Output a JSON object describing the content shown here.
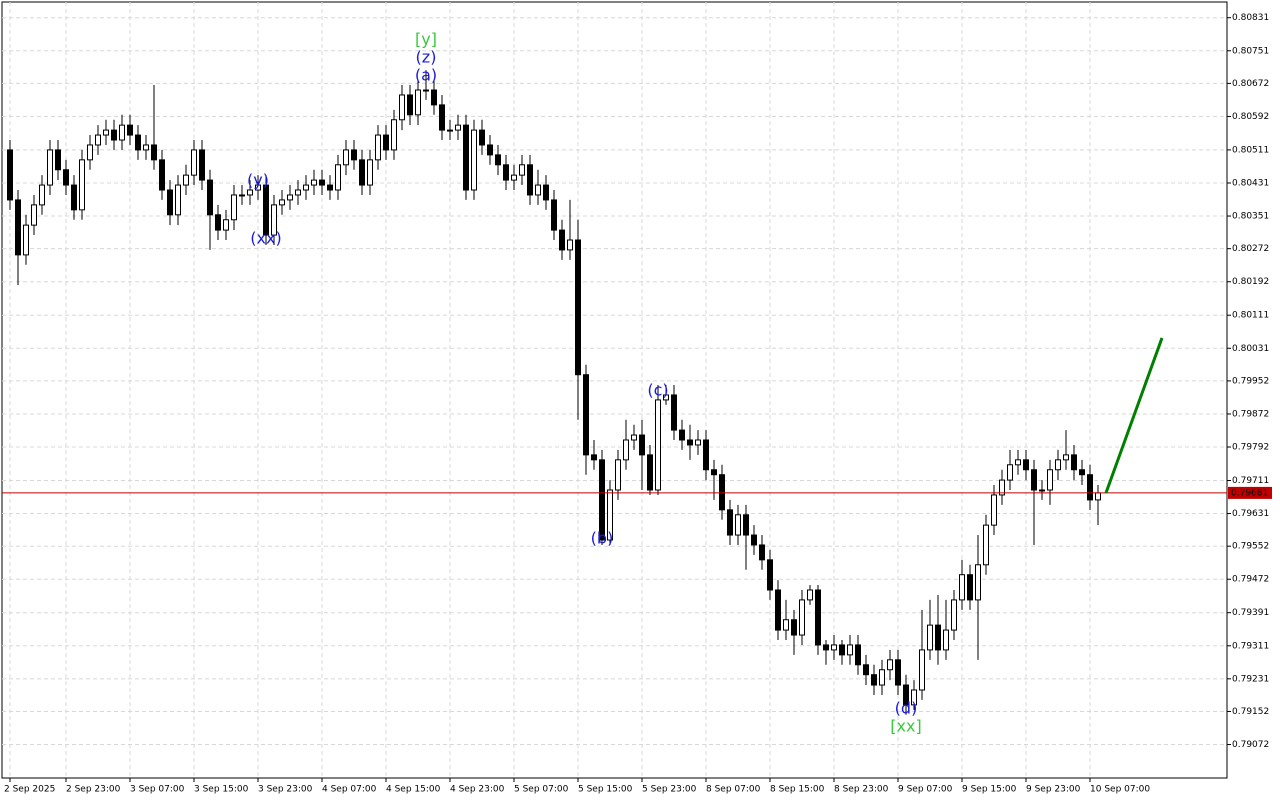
{
  "chart_data": {
    "type": "candlestick",
    "ylim": [
      0.78991,
      0.80869
    ],
    "yticks": [
      0.80831,
      0.80751,
      0.80672,
      0.80592,
      0.80511,
      0.80431,
      0.80351,
      0.80272,
      0.80192,
      0.80111,
      0.80031,
      0.79952,
      0.79872,
      0.79792,
      0.79711,
      0.79631,
      0.79552,
      0.79472,
      0.79391,
      0.79311,
      0.79231,
      0.79152,
      0.79072
    ],
    "xlim": [
      -1,
      152.125
    ],
    "xticks": [
      {
        "value": 0,
        "label": "2 Sep 2025"
      },
      {
        "value": 7,
        "label": "2 Sep 23:00"
      },
      {
        "value": 15,
        "label": "3 Sep 07:00"
      },
      {
        "value": 23,
        "label": "3 Sep 15:00"
      },
      {
        "value": 31,
        "label": "3 Sep 23:00"
      },
      {
        "value": 39,
        "label": "4 Sep 07:00"
      },
      {
        "value": 47,
        "label": "4 Sep 15:00"
      },
      {
        "value": 55,
        "label": "4 Sep 23:00"
      },
      {
        "value": 63,
        "label": "5 Sep 07:00"
      },
      {
        "value": 71,
        "label": "5 Sep 15:00"
      },
      {
        "value": 79,
        "label": "5 Sep 23:00"
      },
      {
        "value": 87,
        "label": "8 Sep 07:00"
      },
      {
        "value": 95,
        "label": "8 Sep 15:00"
      },
      {
        "value": 103,
        "label": "8 Sep 23:00"
      },
      {
        "value": 111,
        "label": "9 Sep 07:00"
      },
      {
        "value": 119,
        "label": "9 Sep 15:00"
      },
      {
        "value": 127,
        "label": "9 Sep 23:00"
      },
      {
        "value": 135,
        "label": "10 Sep 07:00"
      }
    ],
    "grid": true,
    "up_color": "#ffffff",
    "down_color": "#000000",
    "wick_color": "#000000",
    "ohlc": [
      [
        0.80511,
        0.80535,
        0.80366,
        0.8039
      ],
      [
        0.8039,
        0.80414,
        0.80184,
        0.80257
      ],
      [
        0.80257,
        0.80354,
        0.80233,
        0.80329
      ],
      [
        0.80329,
        0.80402,
        0.80305,
        0.80378
      ],
      [
        0.80378,
        0.8045,
        0.80354,
        0.80426
      ],
      [
        0.80426,
        0.80535,
        0.80402,
        0.80511
      ],
      [
        0.80511,
        0.80535,
        0.80438,
        0.80463
      ],
      [
        0.80463,
        0.80487,
        0.80402,
        0.80426
      ],
      [
        0.80426,
        0.8045,
        0.80342,
        0.80366
      ],
      [
        0.80366,
        0.80511,
        0.80342,
        0.80487
      ],
      [
        0.80487,
        0.80547,
        0.80463,
        0.80523
      ],
      [
        0.80523,
        0.80571,
        0.80499,
        0.80547
      ],
      [
        0.80547,
        0.80584,
        0.80523,
        0.80559
      ],
      [
        0.80559,
        0.80584,
        0.80511,
        0.80535
      ],
      [
        0.80535,
        0.80596,
        0.80511,
        0.80571
      ],
      [
        0.80571,
        0.80596,
        0.80523,
        0.80547
      ],
      [
        0.80547,
        0.80571,
        0.80487,
        0.80511
      ],
      [
        0.80511,
        0.80547,
        0.80487,
        0.80523
      ],
      [
        0.80523,
        0.80668,
        0.80463,
        0.80487
      ],
      [
        0.80487,
        0.80511,
        0.8039,
        0.80414
      ],
      [
        0.80414,
        0.80438,
        0.80329,
        0.80354
      ],
      [
        0.80354,
        0.8045,
        0.80329,
        0.80426
      ],
      [
        0.80426,
        0.80475,
        0.80402,
        0.8045
      ],
      [
        0.8045,
        0.80535,
        0.80426,
        0.80511
      ],
      [
        0.80511,
        0.80535,
        0.80414,
        0.80438
      ],
      [
        0.80438,
        0.80463,
        0.80269,
        0.80354
      ],
      [
        0.80354,
        0.80378,
        0.80293,
        0.80317
      ],
      [
        0.80317,
        0.80366,
        0.80293,
        0.80342
      ],
      [
        0.80342,
        0.80426,
        0.80317,
        0.80402
      ],
      [
        0.80402,
        0.80426,
        0.80378,
        0.80402
      ],
      [
        0.80402,
        0.80438,
        0.80378,
        0.80414
      ],
      [
        0.80414,
        0.8045,
        0.8039,
        0.80426
      ],
      [
        0.80426,
        0.8045,
        0.80281,
        0.80305
      ],
      [
        0.80305,
        0.80402,
        0.80281,
        0.80378
      ],
      [
        0.80378,
        0.80414,
        0.80354,
        0.8039
      ],
      [
        0.8039,
        0.80426,
        0.80366,
        0.80402
      ],
      [
        0.80402,
        0.80438,
        0.80378,
        0.80414
      ],
      [
        0.80414,
        0.8045,
        0.8039,
        0.80426
      ],
      [
        0.80426,
        0.80463,
        0.80402,
        0.80438
      ],
      [
        0.80438,
        0.80463,
        0.80402,
        0.80426
      ],
      [
        0.80426,
        0.8045,
        0.8039,
        0.80414
      ],
      [
        0.80414,
        0.80499,
        0.8039,
        0.80475
      ],
      [
        0.80475,
        0.80535,
        0.8045,
        0.80511
      ],
      [
        0.80511,
        0.80535,
        0.80463,
        0.80487
      ],
      [
        0.80487,
        0.80511,
        0.80402,
        0.80426
      ],
      [
        0.80426,
        0.80511,
        0.80402,
        0.80487
      ],
      [
        0.80487,
        0.80571,
        0.80463,
        0.80547
      ],
      [
        0.80547,
        0.80571,
        0.80487,
        0.80511
      ],
      [
        0.80511,
        0.80608,
        0.80487,
        0.80584
      ],
      [
        0.80584,
        0.80668,
        0.80559,
        0.80644
      ],
      [
        0.80644,
        0.80668,
        0.80571,
        0.80596
      ],
      [
        0.80596,
        0.8068,
        0.80571,
        0.80656
      ],
      [
        0.80656,
        0.80704,
        0.80632,
        0.80656
      ],
      [
        0.80656,
        0.8068,
        0.80596,
        0.8062
      ],
      [
        0.8062,
        0.80644,
        0.80535,
        0.80559
      ],
      [
        0.80559,
        0.80584,
        0.80535,
        0.80559
      ],
      [
        0.80559,
        0.80596,
        0.80535,
        0.80571
      ],
      [
        0.80571,
        0.80596,
        0.8039,
        0.80414
      ],
      [
        0.80414,
        0.80584,
        0.8039,
        0.80559
      ],
      [
        0.80559,
        0.80584,
        0.80499,
        0.80523
      ],
      [
        0.80523,
        0.80547,
        0.80475,
        0.80499
      ],
      [
        0.80499,
        0.80523,
        0.8045,
        0.80475
      ],
      [
        0.80475,
        0.80499,
        0.80414,
        0.80438
      ],
      [
        0.80438,
        0.80475,
        0.80414,
        0.8045
      ],
      [
        0.8045,
        0.80499,
        0.80426,
        0.80475
      ],
      [
        0.80475,
        0.80499,
        0.80378,
        0.80402
      ],
      [
        0.80402,
        0.80463,
        0.80378,
        0.80426
      ],
      [
        0.80426,
        0.8045,
        0.80366,
        0.8039
      ],
      [
        0.8039,
        0.80414,
        0.80293,
        0.80317
      ],
      [
        0.80317,
        0.80342,
        0.80245,
        0.80269
      ],
      [
        0.80269,
        0.8039,
        0.80245,
        0.80293
      ],
      [
        0.80293,
        0.80342,
        0.79858,
        0.79967
      ],
      [
        0.79967,
        0.79991,
        0.79725,
        0.79773
      ],
      [
        0.79773,
        0.79809,
        0.79737,
        0.79761
      ],
      [
        0.79761,
        0.79785,
        0.79555,
        0.79567
      ],
      [
        0.79567,
        0.79712,
        0.79555,
        0.79688
      ],
      [
        0.79688,
        0.79785,
        0.79664,
        0.79761
      ],
      [
        0.79761,
        0.79858,
        0.79737,
        0.79809
      ],
      [
        0.79809,
        0.79846,
        0.79785,
        0.79821
      ],
      [
        0.79821,
        0.79858,
        0.79688,
        0.79773
      ],
      [
        0.79773,
        0.79797,
        0.79676,
        0.79688
      ],
      [
        0.79688,
        0.79942,
        0.79676,
        0.79906
      ],
      [
        0.79906,
        0.79942,
        0.79894,
        0.79918
      ],
      [
        0.79918,
        0.79942,
        0.79809,
        0.79833
      ],
      [
        0.79833,
        0.79858,
        0.79785,
        0.79809
      ],
      [
        0.79809,
        0.79846,
        0.79761,
        0.79797
      ],
      [
        0.79797,
        0.79833,
        0.79773,
        0.79809
      ],
      [
        0.79809,
        0.79833,
        0.79712,
        0.79737
      ],
      [
        0.79737,
        0.79761,
        0.79664,
        0.79725
      ],
      [
        0.79725,
        0.79749,
        0.79616,
        0.7964
      ],
      [
        0.7964,
        0.79664,
        0.79555,
        0.79579
      ],
      [
        0.79579,
        0.79652,
        0.79555,
        0.79628
      ],
      [
        0.79628,
        0.79652,
        0.79495,
        0.79579
      ],
      [
        0.79579,
        0.79603,
        0.79531,
        0.79555
      ],
      [
        0.79555,
        0.79579,
        0.79495,
        0.79519
      ],
      [
        0.79519,
        0.79543,
        0.79422,
        0.79446
      ],
      [
        0.79446,
        0.7947,
        0.79325,
        0.79349
      ],
      [
        0.79349,
        0.79422,
        0.79325,
        0.79374
      ],
      [
        0.79374,
        0.79398,
        0.79289,
        0.79337
      ],
      [
        0.79337,
        0.79446,
        0.79313,
        0.79422
      ],
      [
        0.79422,
        0.79458,
        0.7941,
        0.79446
      ],
      [
        0.79446,
        0.79458,
        0.79289,
        0.79313
      ],
      [
        0.79313,
        0.79325,
        0.79265,
        0.79301
      ],
      [
        0.79301,
        0.79337,
        0.79277,
        0.79313
      ],
      [
        0.79313,
        0.79325,
        0.79265,
        0.79289
      ],
      [
        0.79289,
        0.79337,
        0.79265,
        0.79313
      ],
      [
        0.79313,
        0.79337,
        0.79241,
        0.79265
      ],
      [
        0.79265,
        0.79289,
        0.79216,
        0.79241
      ],
      [
        0.79241,
        0.79265,
        0.79192,
        0.79216
      ],
      [
        0.79216,
        0.79277,
        0.79192,
        0.79253
      ],
      [
        0.79253,
        0.79301,
        0.79228,
        0.79277
      ],
      [
        0.79277,
        0.79301,
        0.79192,
        0.79216
      ],
      [
        0.79216,
        0.79241,
        0.79144,
        0.79168
      ],
      [
        0.79168,
        0.79228,
        0.79156,
        0.79204
      ],
      [
        0.79204,
        0.79398,
        0.7918,
        0.79301
      ],
      [
        0.79301,
        0.79422,
        0.79277,
        0.79361
      ],
      [
        0.79361,
        0.79434,
        0.79265,
        0.79301
      ],
      [
        0.79301,
        0.79422,
        0.79277,
        0.79349
      ],
      [
        0.79349,
        0.79446,
        0.79325,
        0.79422
      ],
      [
        0.79422,
        0.79519,
        0.79398,
        0.79483
      ],
      [
        0.79483,
        0.79507,
        0.79398,
        0.79422
      ],
      [
        0.79422,
        0.79579,
        0.79277,
        0.79507
      ],
      [
        0.79507,
        0.79628,
        0.79483,
        0.79603
      ],
      [
        0.79603,
        0.797,
        0.79579,
        0.79676
      ],
      [
        0.79676,
        0.79737,
        0.79652,
        0.79712
      ],
      [
        0.79712,
        0.79785,
        0.79688,
        0.79749
      ],
      [
        0.79749,
        0.79785,
        0.79725,
        0.79761
      ],
      [
        0.79761,
        0.79785,
        0.79712,
        0.79737
      ],
      [
        0.79737,
        0.79761,
        0.79555,
        0.79688
      ],
      [
        0.79688,
        0.79712,
        0.79664,
        0.79688
      ],
      [
        0.79688,
        0.79761,
        0.79652,
        0.79737
      ],
      [
        0.79737,
        0.79785,
        0.79712,
        0.79761
      ],
      [
        0.79761,
        0.79833,
        0.79737,
        0.79773
      ],
      [
        0.79773,
        0.79797,
        0.79712,
        0.79737
      ],
      [
        0.79737,
        0.79761,
        0.797,
        0.79725
      ],
      [
        0.79725,
        0.79749,
        0.7964,
        0.79664
      ],
      [
        0.79664,
        0.797,
        0.79603,
        0.79681
      ]
    ],
    "current_price": {
      "value": 0.79681,
      "color": "#c00000"
    },
    "projection": {
      "color": "#008000",
      "x": [
        137,
        144
      ],
      "values": [
        0.79681,
        0.80056
      ]
    },
    "annotations": [
      {
        "text": "(a)",
        "candle": 52,
        "anchor": "high",
        "color": "#1c1cdc"
      },
      {
        "text": "(z)",
        "candle": 52,
        "anchor": "high",
        "color": "#1c1cdc"
      },
      {
        "text": "[y]",
        "candle": 52,
        "anchor": "high",
        "color": "#3cc83c"
      },
      {
        "text": "(y)",
        "candle": 31,
        "anchor": "high",
        "color": "#1c1cdc"
      },
      {
        "text": "(xx)",
        "candle": 32,
        "anchor": "low",
        "color": "#1c1cdc"
      },
      {
        "text": "(b)",
        "candle": 74,
        "anchor": "low",
        "color": "#1c1cdc"
      },
      {
        "text": "(c)",
        "candle": 81,
        "anchor": "high",
        "color": "#1c1cdc"
      },
      {
        "text": "(d)",
        "candle": 112,
        "anchor": "low",
        "color": "#1c1cdc"
      },
      {
        "text": "[xx]",
        "candle": 112,
        "anchor": "low",
        "color": "#3cc83c"
      }
    ]
  }
}
